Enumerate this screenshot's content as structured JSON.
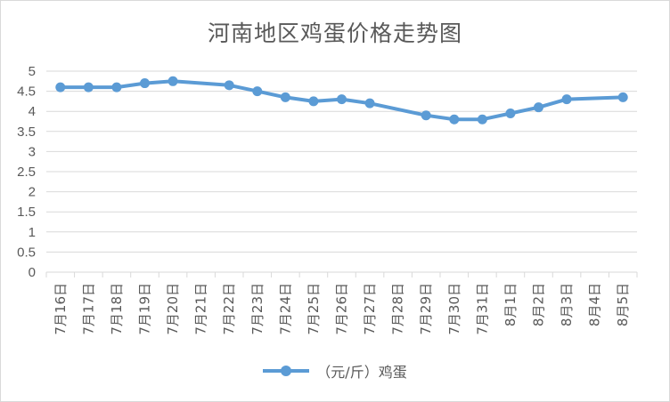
{
  "chart_data": {
    "type": "line",
    "title": "河南地区鸡蛋价格走势图",
    "categories": [
      "7月16日",
      "7月17日",
      "7月18日",
      "7月19日",
      "7月20日",
      "7月21日",
      "7月22日",
      "7月23日",
      "7月24日",
      "7月25日",
      "7月26日",
      "7月27日",
      "7月28日",
      "7月29日",
      "7月30日",
      "7月31日",
      "8月1日",
      "8月2日",
      "8月3日",
      "8月4日",
      "8月5日"
    ],
    "series": [
      {
        "name": "（元/斤）鸡蛋",
        "values": [
          4.6,
          4.6,
          4.6,
          4.7,
          4.75,
          null,
          4.65,
          4.5,
          4.35,
          4.25,
          4.3,
          4.2,
          null,
          3.9,
          3.8,
          3.8,
          3.95,
          4.1,
          4.3,
          null,
          4.35
        ],
        "color": "#5b9bd5"
      }
    ],
    "ylim": [
      0,
      5
    ],
    "yticks": [
      "0",
      "0.5",
      "1",
      "1.5",
      "2",
      "2.5",
      "3",
      "3.5",
      "4",
      "4.5",
      "5"
    ],
    "grid": true,
    "legend": "bottom"
  }
}
